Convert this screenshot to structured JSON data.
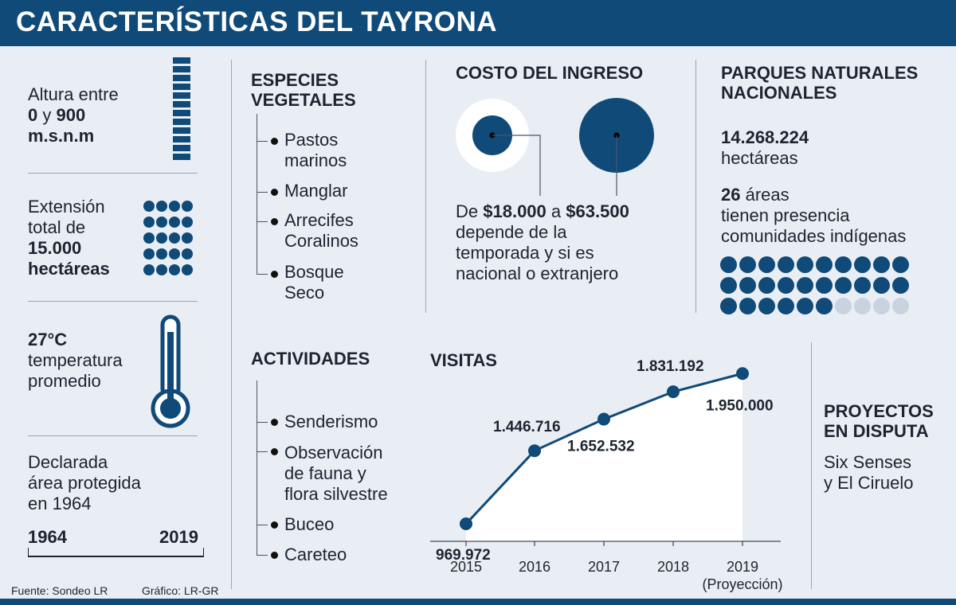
{
  "header": {
    "title": "CARACTERÍSTICAS DEL TAYRONA"
  },
  "altitude": {
    "line1": "Altura entre",
    "low": "0",
    "connector": "y",
    "high": "900",
    "unit": "m.s.n.m"
  },
  "extension": {
    "line1": "Extensión",
    "line2": "total de",
    "amount": "15.000",
    "unit": "hectáreas"
  },
  "temperature": {
    "value": "27°C",
    "line1": "temperatura",
    "line2": "promedio"
  },
  "declared": {
    "line1": "Declarada",
    "line2": "área protegida",
    "line3": "en 1964",
    "start": "1964",
    "end": "2019"
  },
  "footer": {
    "source": "Fuente: Sondeo LR",
    "graphic": "Gráfico: LR-GR"
  },
  "species": {
    "title_line1": "ESPECIES",
    "title_line2": "VEGETALES",
    "items": [
      {
        "line1": "Pastos",
        "line2": "marinos"
      },
      {
        "line1": "Manglar",
        "line2": ""
      },
      {
        "line1": "Arrecifes",
        "line2": "Coralinos"
      },
      {
        "line1": "Bosque",
        "line2": "Seco"
      }
    ]
  },
  "cost": {
    "title": "COSTO DEL INGRESO",
    "prefix": "De",
    "min": "$18.000",
    "connector": "a",
    "max": "$63.500",
    "line2": "depende de la",
    "line3": "temporada y si es",
    "line4": "nacional o extranjero"
  },
  "parks": {
    "title_line1": "PARQUES NATURALES",
    "title_line2": "NACIONALES",
    "hectares_value": "14.268.224",
    "hectares_label": "hectáreas",
    "areas_value": "26",
    "areas_label": "áreas",
    "line2": "tienen presencia",
    "line3": "comunidades indígenas",
    "dots_total": 30,
    "dots_filled": 26
  },
  "activities": {
    "title": "ACTIVIDADES",
    "items": [
      {
        "line1": "Senderismo",
        "line2": "",
        "line3": ""
      },
      {
        "line1": "Observación",
        "line2": "de fauna y",
        "line3": "flora silvestre"
      },
      {
        "line1": "Buceo",
        "line2": "",
        "line3": ""
      },
      {
        "line1": "Careteo",
        "line2": "",
        "line3": ""
      }
    ]
  },
  "projects": {
    "title_line1": "PROYECTOS",
    "title_line2": "EN DISPUTA",
    "line1": "Six Senses",
    "line2": "y El Ciruelo"
  },
  "chart_data": {
    "type": "line",
    "title": "VISITAS",
    "categories": [
      "2015",
      "2016",
      "2017",
      "2018",
      "2019"
    ],
    "category_note": "(Proyección)",
    "series": [
      {
        "values": [
          969972,
          1446716,
          1652532,
          1831192,
          1950000
        ]
      }
    ],
    "value_labels": [
      "969.972",
      "1.446.716",
      "1.652.532",
      "1.831.192",
      "1.950.000"
    ],
    "ylim": [
      700000,
      2050000
    ],
    "color": "#104a78"
  }
}
